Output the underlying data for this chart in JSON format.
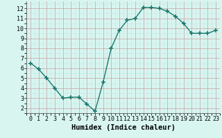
{
  "x": [
    0,
    1,
    2,
    3,
    4,
    5,
    6,
    7,
    8,
    9,
    10,
    11,
    12,
    13,
    14,
    15,
    16,
    17,
    18,
    19,
    20,
    21,
    22,
    23
  ],
  "y": [
    6.5,
    5.9,
    5.0,
    4.0,
    3.0,
    3.1,
    3.1,
    2.4,
    1.7,
    4.6,
    8.0,
    9.8,
    10.8,
    11.0,
    12.1,
    12.1,
    12.0,
    11.7,
    11.2,
    10.5,
    9.5,
    9.5,
    9.5,
    9.8
  ],
  "xlabel": "Humidex (Indice chaleur)",
  "xlim": [
    -0.5,
    23.5
  ],
  "ylim": [
    1.5,
    12.7
  ],
  "yticks": [
    2,
    3,
    4,
    5,
    6,
    7,
    8,
    9,
    10,
    11,
    12
  ],
  "xticks": [
    0,
    1,
    2,
    3,
    4,
    5,
    6,
    7,
    8,
    9,
    10,
    11,
    12,
    13,
    14,
    15,
    16,
    17,
    18,
    19,
    20,
    21,
    22,
    23
  ],
  "line_color": "#1a7a6e",
  "marker": "+",
  "marker_size": 4.0,
  "line_width": 1.0,
  "bg_color": "#d8f5f0",
  "grid_color_major": "#c8a0a0",
  "grid_color_minor": "#c0e8e4",
  "axis_label_fontsize": 7.5,
  "tick_fontsize": 6.0
}
